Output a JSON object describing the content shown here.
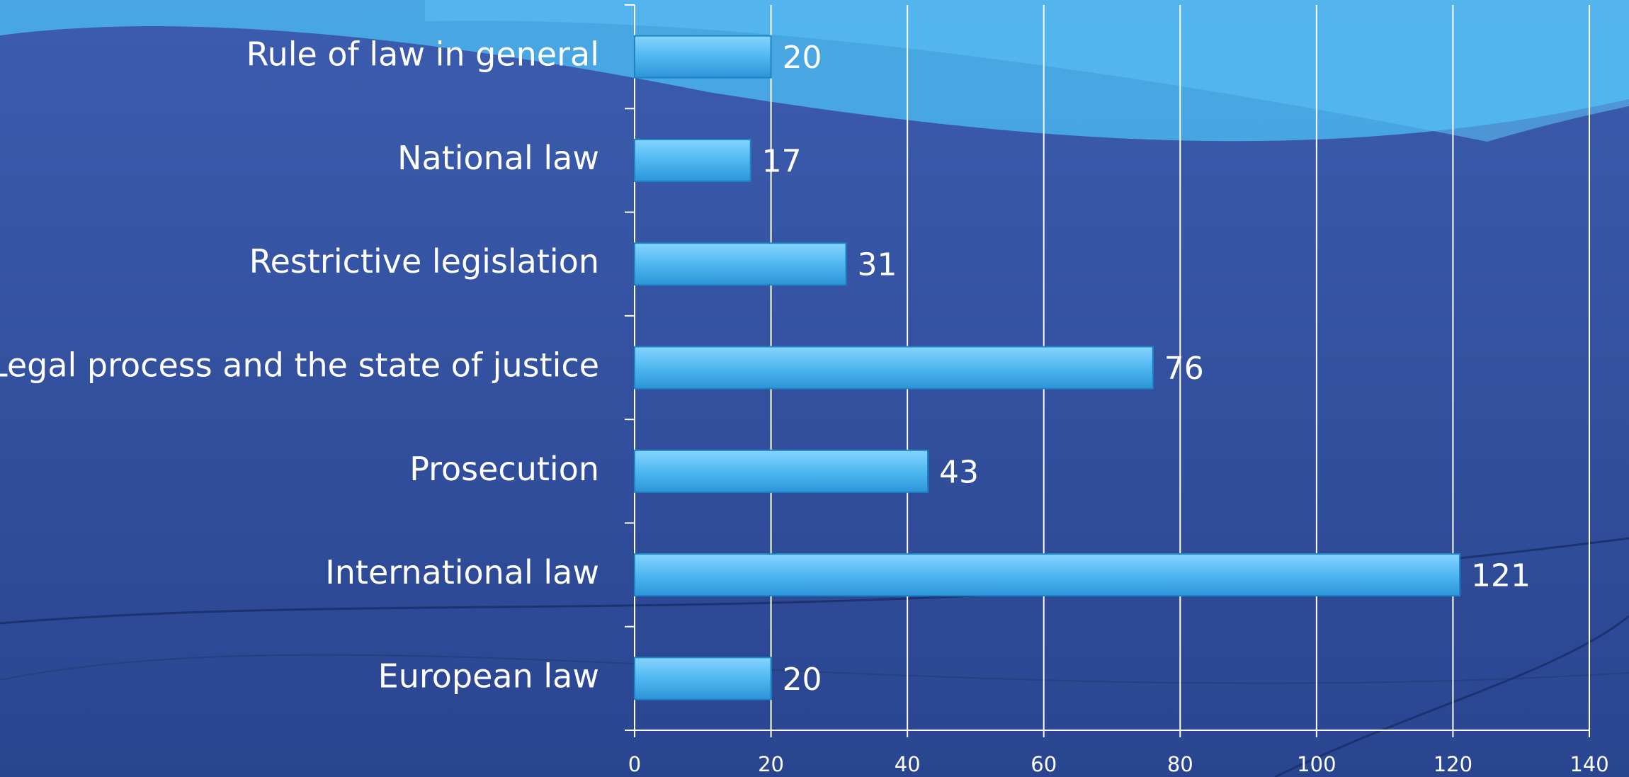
{
  "chart_data": {
    "type": "bar",
    "orientation": "horizontal",
    "categories": [
      "Rule of law in general",
      "National law",
      "Restrictive legislation",
      "Legal process and the state of justice",
      "Prosecution",
      "International law",
      "European law"
    ],
    "values": [
      20,
      17,
      31,
      76,
      43,
      121,
      20
    ],
    "color": "#4fb8f0",
    "xlim": [
      0,
      140
    ],
    "xticks": [
      0,
      20,
      40,
      60,
      80,
      100,
      120,
      140
    ],
    "grid": true
  }
}
